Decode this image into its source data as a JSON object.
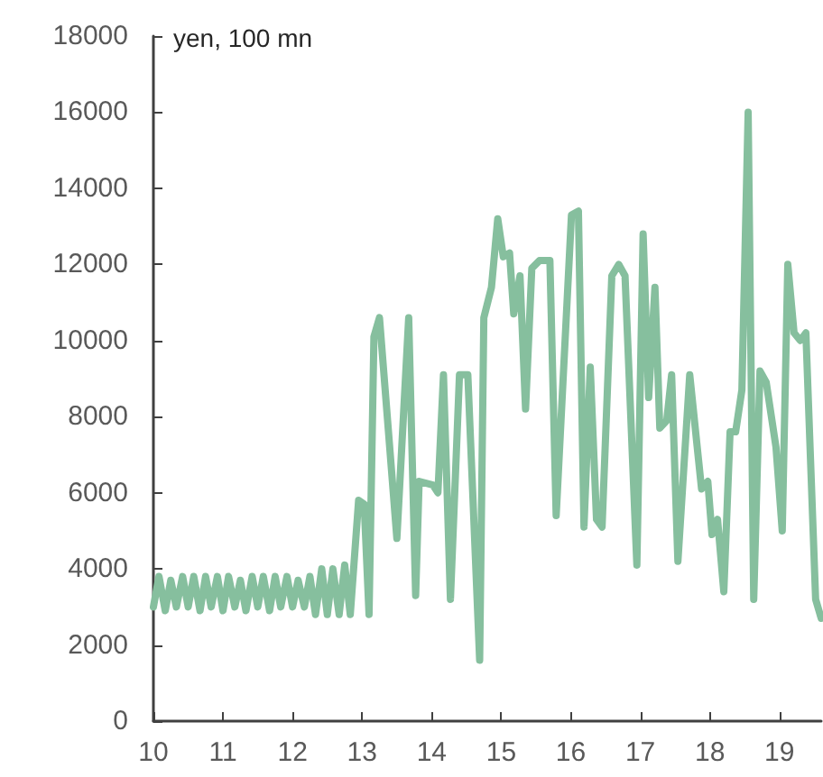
{
  "chart_data": {
    "type": "line",
    "ylabel": "yen, 100 mn",
    "x": [
      10,
      10.08,
      10.17,
      10.25,
      10.33,
      10.42,
      10.5,
      10.58,
      10.67,
      10.75,
      10.83,
      10.92,
      11,
      11.08,
      11.17,
      11.25,
      11.33,
      11.42,
      11.5,
      11.58,
      11.67,
      11.75,
      11.83,
      11.92,
      12,
      12.08,
      12.17,
      12.25,
      12.33,
      12.42,
      12.5,
      12.58,
      12.67,
      12.75,
      12.83,
      12.95,
      13.03,
      13.1,
      13.17,
      13.25,
      13.5,
      13.67,
      13.77,
      13.82,
      14.02,
      14.09,
      14.17,
      14.27,
      14.4,
      14.52,
      14.69,
      14.75,
      14.86,
      14.95,
      15.03,
      15.12,
      15.18,
      15.27,
      15.35,
      15.44,
      15.55,
      15.7,
      15.79,
      16.01,
      16.11,
      16.19,
      16.28,
      16.37,
      16.45,
      16.59,
      16.69,
      16.78,
      16.95,
      17.04,
      17.12,
      17.21,
      17.28,
      17.38,
      17.45,
      17.54,
      17.71,
      17.88,
      17.97,
      18.03,
      18.11,
      18.2,
      18.29,
      18.37,
      18.46,
      18.55,
      18.63,
      18.72,
      18.81,
      18.95,
      19.04,
      19.12,
      19.21,
      19.3,
      19.38,
      19.52,
      19.6
    ],
    "series": [
      {
        "color": "#86bf9e",
        "values": [
          3000,
          3800,
          2900,
          3700,
          3000,
          3800,
          3000,
          3800,
          2900,
          3800,
          3000,
          3800,
          2900,
          3800,
          3000,
          3700,
          2900,
          3800,
          3000,
          3800,
          2900,
          3800,
          3000,
          3800,
          3000,
          3700,
          3000,
          3800,
          2800,
          4000,
          2800,
          4000,
          2800,
          4100,
          2800,
          5800,
          5700,
          2800,
          10100,
          10600,
          4800,
          10600,
          3300,
          6300,
          6200,
          6000,
          9100,
          3200,
          9100,
          9100,
          1600,
          10600,
          11400,
          13200,
          12200,
          12300,
          10700,
          11700,
          8200,
          11900,
          12100,
          12100,
          5400,
          13300,
          13400,
          5100,
          9300,
          5300,
          5100,
          11700,
          12000,
          11700,
          4100,
          12800,
          8500,
          11400,
          7700,
          7900,
          9100,
          4200,
          9100,
          6100,
          6300,
          4900,
          5300,
          3400,
          7600,
          7600,
          8700,
          16000,
          3200,
          9200,
          8900,
          7200,
          5000,
          12000,
          10200,
          10000,
          10200,
          3200,
          2700
        ]
      }
    ],
    "xlim": [
      10,
      19.6
    ],
    "xticks": [
      10,
      11,
      12,
      13,
      14,
      15,
      16,
      17,
      18,
      19
    ],
    "ylim": [
      0,
      18000
    ],
    "yticks": [
      0,
      2000,
      4000,
      6000,
      8000,
      10000,
      12000,
      14000,
      16000,
      18000
    ],
    "grid": false,
    "marker": "none",
    "line_style": "solid"
  }
}
